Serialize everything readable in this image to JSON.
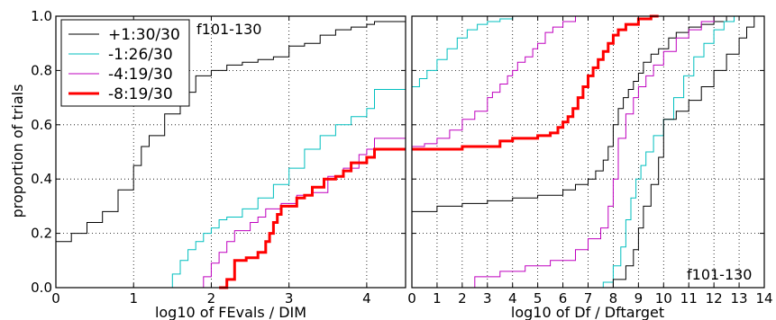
{
  "chart_data": [
    {
      "type": "line",
      "step": true,
      "annotation": "f101-130",
      "xlabel": "log10 of FEvals / DIM",
      "ylabel": "proportion of trials",
      "xlim": [
        0,
        4.5
      ],
      "ylim": [
        0,
        1.0
      ],
      "xticks": [
        "0",
        "1",
        "2",
        "3",
        "4"
      ],
      "yticks": [
        "0.0",
        "0.2",
        "0.4",
        "0.6",
        "0.8",
        "1.0"
      ],
      "grid": true,
      "legend": {
        "position": "top-left"
      },
      "series": [
        {
          "name": "+1:30/30",
          "color": "#000000",
          "width": 1,
          "x": [
            0,
            0.2,
            0.4,
            0.6,
            0.8,
            1.0,
            1.1,
            1.2,
            1.4,
            1.6,
            1.8,
            2.0,
            2.2,
            2.4,
            2.6,
            2.8,
            3.0,
            3.2,
            3.4,
            3.6,
            3.8,
            4.0,
            4.1,
            4.5
          ],
          "y": [
            0.17,
            0.2,
            0.24,
            0.28,
            0.36,
            0.45,
            0.52,
            0.56,
            0.64,
            0.72,
            0.78,
            0.8,
            0.82,
            0.83,
            0.84,
            0.85,
            0.89,
            0.9,
            0.93,
            0.95,
            0.96,
            0.97,
            0.98,
            0.98
          ]
        },
        {
          "name": "-1:26/30",
          "color": "#00bfbf",
          "width": 1,
          "x": [
            1.44,
            1.5,
            1.6,
            1.7,
            1.8,
            1.9,
            2.0,
            2.1,
            2.2,
            2.4,
            2.6,
            2.8,
            3.0,
            3.2,
            3.4,
            3.6,
            3.8,
            4.0,
            4.1,
            4.5
          ],
          "y": [
            0.0,
            0.05,
            0.1,
            0.14,
            0.17,
            0.2,
            0.22,
            0.25,
            0.26,
            0.29,
            0.33,
            0.38,
            0.44,
            0.51,
            0.56,
            0.6,
            0.63,
            0.66,
            0.73,
            0.73
          ]
        },
        {
          "name": "-4:19/30",
          "color": "#bf00bf",
          "width": 1,
          "x": [
            1.8,
            1.9,
            2.0,
            2.1,
            2.2,
            2.3,
            2.5,
            2.6,
            2.7,
            2.9,
            3.1,
            3.3,
            3.5,
            3.7,
            3.9,
            4.0,
            4.1,
            4.5
          ],
          "y": [
            0.0,
            0.04,
            0.09,
            0.13,
            0.17,
            0.21,
            0.24,
            0.26,
            0.29,
            0.31,
            0.34,
            0.35,
            0.41,
            0.44,
            0.49,
            0.51,
            0.55,
            0.55
          ]
        },
        {
          "name": "-8:19/30",
          "color": "#ff0000",
          "width": 3,
          "x": [
            2.1,
            2.2,
            2.3,
            2.45,
            2.6,
            2.7,
            2.75,
            2.8,
            2.85,
            2.9,
            3.1,
            3.2,
            3.3,
            3.45,
            3.6,
            3.7,
            3.8,
            4.0,
            4.1,
            4.5
          ],
          "y": [
            0.0,
            0.03,
            0.1,
            0.11,
            0.13,
            0.17,
            0.2,
            0.24,
            0.27,
            0.3,
            0.33,
            0.34,
            0.37,
            0.4,
            0.41,
            0.43,
            0.46,
            0.48,
            0.51,
            0.51
          ]
        }
      ]
    },
    {
      "type": "line",
      "step": true,
      "annotation": "f101-130",
      "xlabel": "log10 of Df / Dftarget",
      "ylabel": "",
      "xlim": [
        0,
        14
      ],
      "ylim": [
        0,
        1.0
      ],
      "xticks": [
        "0",
        "1",
        "2",
        "3",
        "4",
        "5",
        "6",
        "7",
        "8",
        "9",
        "10",
        "11",
        "12",
        "13",
        "14"
      ],
      "grid": true,
      "series": [
        {
          "name": "+1:30/30",
          "color": "#000000",
          "width": 1,
          "x": [
            0,
            1,
            2,
            3,
            4,
            5,
            6,
            6.5,
            7,
            7.3,
            7.6,
            7.8,
            8.0,
            8.2,
            8.4,
            8.6,
            8.8,
            9.0,
            9.2,
            9.5,
            9.8,
            10.2,
            10.5,
            11,
            11.5,
            12,
            12.5,
            14
          ],
          "y": [
            0.28,
            0.3,
            0.31,
            0.32,
            0.33,
            0.34,
            0.36,
            0.38,
            0.4,
            0.43,
            0.47,
            0.52,
            0.6,
            0.66,
            0.7,
            0.73,
            0.76,
            0.79,
            0.83,
            0.86,
            0.88,
            0.92,
            0.94,
            0.96,
            0.97,
            0.98,
            1.0,
            1.0
          ]
        },
        {
          "name": "-1:26/30",
          "color": "#00bfbf",
          "width": 1,
          "x": [
            0,
            0.3,
            0.6,
            1.0,
            1.4,
            1.8,
            2.2,
            2.6,
            3.0,
            3.5,
            4.0,
            4.5,
            5.0,
            6.0,
            7.0,
            7.5
          ],
          "y": [
            0.74,
            0.77,
            0.8,
            0.84,
            0.88,
            0.92,
            0.95,
            0.97,
            0.98,
            0.99,
            1.0,
            1.0,
            1.0,
            1.0,
            1.0,
            1.0
          ]
        },
        {
          "name": "-4:19/30",
          "color": "#bf00bf",
          "width": 1,
          "x": [
            0,
            0.5,
            1.0,
            1.5,
            2.0,
            2.5,
            3.0,
            3.2,
            3.5,
            3.8,
            4.0,
            4.2,
            4.5,
            4.8,
            5.0,
            5.3,
            5.6,
            6.0,
            6.5
          ],
          "y": [
            0.52,
            0.53,
            0.55,
            0.58,
            0.62,
            0.65,
            0.7,
            0.72,
            0.75,
            0.78,
            0.8,
            0.83,
            0.85,
            0.88,
            0.9,
            0.94,
            0.96,
            0.98,
            1.0
          ]
        },
        {
          "name": "-8:19/30",
          "color": "#ff0000",
          "width": 3,
          "x": [
            0,
            1,
            2,
            3,
            3.5,
            4.0,
            4.5,
            5.0,
            5.5,
            5.8,
            6.0,
            6.2,
            6.4,
            6.6,
            6.8,
            7.0,
            7.2,
            7.4,
            7.6,
            7.8,
            8.0,
            8.2,
            8.5,
            9.0,
            9.5,
            9.8
          ],
          "y": [
            0.51,
            0.51,
            0.52,
            0.52,
            0.54,
            0.55,
            0.55,
            0.56,
            0.57,
            0.59,
            0.61,
            0.63,
            0.66,
            0.7,
            0.74,
            0.78,
            0.81,
            0.84,
            0.87,
            0.9,
            0.93,
            0.95,
            0.97,
            0.99,
            1.0,
            1.0
          ]
        },
        {
          "name": "-1:26/30 (right)",
          "color": "#00bfbf",
          "width": 1,
          "x": [
            7.2,
            7.6,
            8.0,
            8.3,
            8.5,
            8.7,
            8.9,
            9.1,
            9.3,
            9.6,
            10.0,
            10.4,
            10.8,
            11.2,
            11.6,
            12.0,
            12.4,
            12.8
          ],
          "y": [
            0.0,
            0.02,
            0.08,
            0.15,
            0.25,
            0.33,
            0.4,
            0.45,
            0.5,
            0.56,
            0.62,
            0.7,
            0.78,
            0.85,
            0.9,
            0.95,
            0.98,
            1.0
          ]
        },
        {
          "name": "-4:19/30 (right)",
          "color": "#bf00bf",
          "width": 1,
          "x": [
            1.9,
            2.5,
            3.5,
            4.5,
            5.5,
            6.5,
            7.0,
            7.5,
            7.8,
            8.0,
            8.2,
            8.5,
            8.8,
            9.0,
            9.3,
            9.6,
            10.0,
            10.5,
            11.0,
            11.5,
            12.0
          ],
          "y": [
            0.0,
            0.04,
            0.06,
            0.08,
            0.1,
            0.14,
            0.18,
            0.22,
            0.3,
            0.4,
            0.55,
            0.64,
            0.7,
            0.74,
            0.78,
            0.82,
            0.87,
            0.92,
            0.95,
            0.98,
            1.0
          ]
        },
        {
          "name": "+1:30/30 (right)",
          "color": "#000000",
          "width": 1,
          "x": [
            7.5,
            8.0,
            8.5,
            8.8,
            9.0,
            9.2,
            9.5,
            9.8,
            10.0,
            10.5,
            11.0,
            11.5,
            12.0,
            12.5,
            13.0,
            13.3,
            13.6
          ],
          "y": [
            0.0,
            0.03,
            0.08,
            0.14,
            0.22,
            0.3,
            0.38,
            0.48,
            0.62,
            0.65,
            0.69,
            0.74,
            0.8,
            0.86,
            0.92,
            0.96,
            1.0
          ]
        }
      ]
    }
  ]
}
